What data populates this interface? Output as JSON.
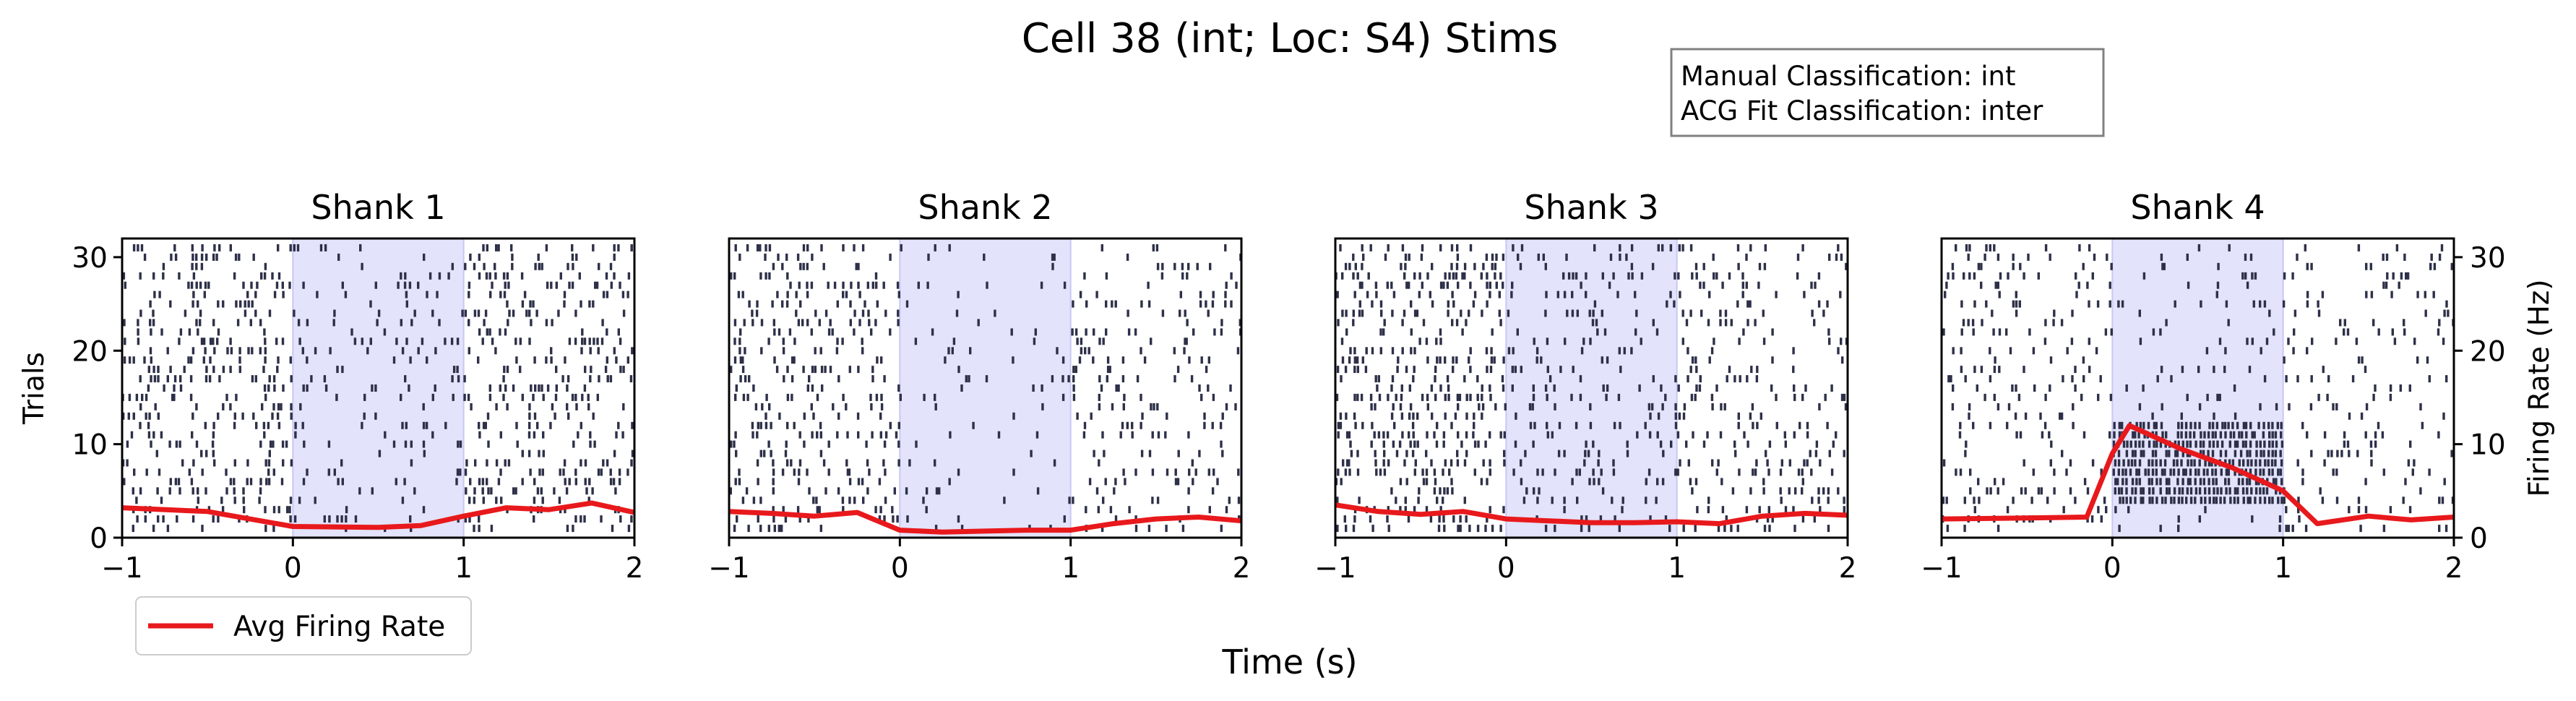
{
  "figure": {
    "title": "Cell 38 (int; Loc: S4) Stims",
    "xlabel": "Time (s)",
    "classification": {
      "manual": "Manual Classification: int",
      "acg": "ACG Fit Classification: inter"
    },
    "legend": {
      "label": "Avg Firing Rate",
      "position": "bottom-left"
    }
  },
  "colors": {
    "spike": "#2d3048",
    "rate": "#e8191c",
    "stim_shade": "#e3e3fb",
    "stim_edge": "#c8c8f5"
  },
  "chart_data": [
    {
      "type": "raster",
      "title": "Shank 1",
      "ylabel": "Trials",
      "xlim": [
        -1,
        2
      ],
      "ylim": [
        0,
        32
      ],
      "xticks": [
        "-1",
        "0",
        "1",
        "2"
      ],
      "yticks": [
        "0",
        "10",
        "20",
        "30"
      ],
      "stim_window": [
        0,
        1
      ],
      "trials": 31,
      "density": {
        "pre": 0.26,
        "stim": 0.11,
        "post": 0.24,
        "stim_burst": null
      },
      "series": [
        {
          "name": "Avg Firing Rate",
          "x": [
            -1,
            -0.5,
            0,
            0.5,
            0.75,
            1,
            1.25,
            1.5,
            1.75,
            2
          ],
          "y": [
            3.2,
            2.8,
            1.2,
            1.1,
            1.3,
            2.3,
            3.2,
            3.0,
            3.7,
            2.7
          ]
        }
      ]
    },
    {
      "type": "raster",
      "title": "Shank 2",
      "xlim": [
        -1,
        2
      ],
      "ylim": [
        0,
        32
      ],
      "xticks": [
        "-1",
        "0",
        "1",
        "2"
      ],
      "stim_window": [
        0,
        1
      ],
      "trials": 31,
      "density": {
        "pre": 0.22,
        "stim": 0.05,
        "post": 0.16,
        "stim_burst": null
      },
      "series": [
        {
          "name": "Avg Firing Rate",
          "x": [
            -1,
            -0.75,
            -0.5,
            -0.25,
            0,
            0.25,
            0.5,
            0.75,
            1,
            1.25,
            1.5,
            1.75,
            2
          ],
          "y": [
            2.8,
            2.6,
            2.3,
            2.7,
            0.8,
            0.6,
            0.7,
            0.8,
            0.8,
            1.5,
            2.0,
            2.2,
            1.8
          ]
        }
      ]
    },
    {
      "type": "raster",
      "title": "Shank 3",
      "xlim": [
        -1,
        2
      ],
      "ylim": [
        0,
        32
      ],
      "xticks": [
        "-1",
        "0",
        "1",
        "2"
      ],
      "stim_window": [
        0,
        1
      ],
      "trials": 31,
      "density": {
        "pre": 0.28,
        "stim": 0.16,
        "post": 0.17,
        "stim_burst": null
      },
      "series": [
        {
          "name": "Avg Firing Rate",
          "x": [
            -1,
            -0.75,
            -0.5,
            -0.25,
            0,
            0.25,
            0.5,
            0.75,
            1,
            1.25,
            1.5,
            1.75,
            2
          ],
          "y": [
            3.5,
            2.8,
            2.5,
            2.8,
            2.0,
            1.8,
            1.6,
            1.6,
            1.7,
            1.5,
            2.3,
            2.6,
            2.4
          ]
        }
      ]
    },
    {
      "type": "raster",
      "title": "Shank 4",
      "y2label": "Firing Rate (Hz)",
      "xlim": [
        -1,
        2
      ],
      "ylim": [
        0,
        32
      ],
      "xticks": [
        "-1",
        "0",
        "1",
        "2"
      ],
      "y2ticks": [
        "0",
        "10",
        "20",
        "30"
      ],
      "stim_window": [
        0,
        1
      ],
      "trials": 31,
      "density": {
        "pre": 0.15,
        "stim": 0.08,
        "post": 0.12,
        "stim_burst": [
          4,
          12
        ]
      },
      "series": [
        {
          "name": "Avg Firing Rate",
          "x": [
            -1,
            -0.5,
            -0.15,
            0,
            0.1,
            0.4,
            0.7,
            1,
            1.2,
            1.5,
            1.75,
            2
          ],
          "y": [
            2.0,
            2.1,
            2.2,
            9.0,
            12.0,
            9.5,
            7.5,
            5.0,
            1.5,
            2.3,
            1.9,
            2.2
          ]
        }
      ]
    }
  ]
}
